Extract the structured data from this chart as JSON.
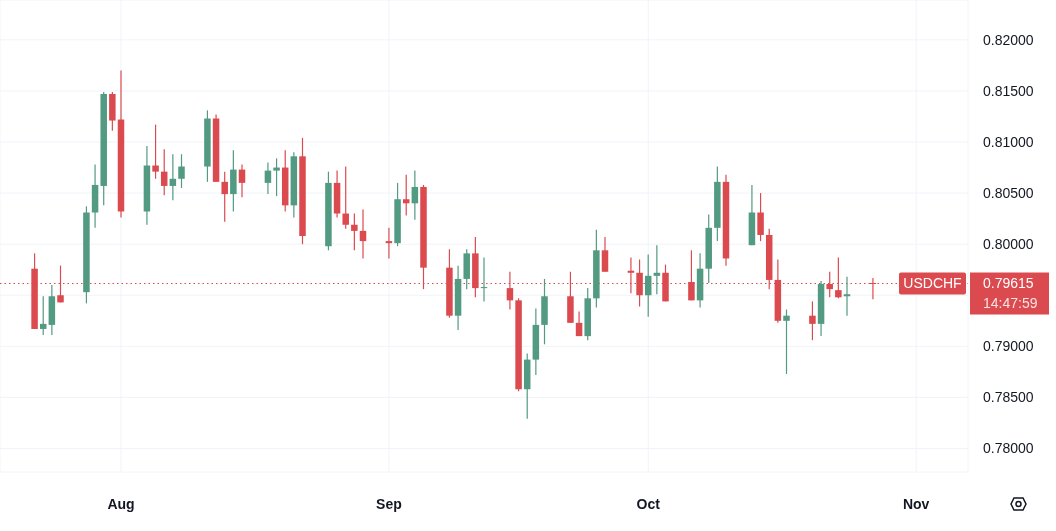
{
  "chart_data": {
    "type": "candlestick",
    "x": [
      "--07-22",
      "--07-23",
      "--07-24",
      "--07-25",
      "--07-28",
      "--07-29",
      "--07-30",
      "--07-31",
      "--08-01",
      "--08-04",
      "--08-05",
      "--08-06",
      "--08-07",
      "--08-08",
      "--08-11",
      "--08-12",
      "--08-13",
      "--08-14",
      "--08-15",
      "--08-18",
      "--08-19",
      "--08-20",
      "--08-21",
      "--08-22",
      "--08-25",
      "--08-26",
      "--08-27",
      "--08-28",
      "--08-29",
      "--09-01",
      "--09-02",
      "--09-03",
      "--09-04",
      "--09-05",
      "--09-08",
      "--09-09",
      "--09-10",
      "--09-11",
      "--09-12",
      "--09-15",
      "--09-16",
      "--09-17",
      "--09-18",
      "--09-19",
      "--09-22",
      "--09-23",
      "--09-24",
      "--09-25",
      "--09-26",
      "--09-29",
      "--09-30",
      "--10-01",
      "--10-02",
      "--10-03",
      "--10-06",
      "--10-07",
      "--10-08",
      "--10-09",
      "--10-10",
      "--10-13",
      "--10-14",
      "--10-15",
      "--10-16",
      "--10-17",
      "--10-20",
      "--10-21",
      "--10-22",
      "--10-23",
      "--10-24",
      "--10-27"
    ],
    "ohlc": [
      [
        0.7976,
        0.7991,
        0.7917,
        0.7917
      ],
      [
        0.7917,
        0.7949,
        0.7911,
        0.7922
      ],
      [
        0.7921,
        0.796,
        0.7911,
        0.7949
      ],
      [
        0.795,
        0.7979,
        0.7943,
        0.7943
      ],
      [
        0.7953,
        0.8037,
        0.7942,
        0.8031
      ],
      [
        0.8031,
        0.8078,
        0.8016,
        0.8058
      ],
      [
        0.8057,
        0.8149,
        0.8038,
        0.8147
      ],
      [
        0.8147,
        0.8149,
        0.8111,
        0.8121
      ],
      [
        0.8122,
        0.817,
        0.8026,
        0.8032
      ],
      [
        0.8032,
        0.8096,
        0.8019,
        0.8077
      ],
      [
        0.8077,
        0.8117,
        0.8064,
        0.8071
      ],
      [
        0.8071,
        0.8093,
        0.8048,
        0.8057
      ],
      [
        0.8057,
        0.8088,
        0.8043,
        0.8064
      ],
      [
        0.8064,
        0.8088,
        0.8055,
        0.8076
      ],
      [
        0.8076,
        0.8131,
        0.8061,
        0.8123
      ],
      [
        0.8123,
        0.8127,
        0.8061,
        0.8061
      ],
      [
        0.8061,
        0.8071,
        0.8022,
        0.8049
      ],
      [
        0.8049,
        0.8092,
        0.8032,
        0.8073
      ],
      [
        0.8073,
        0.8078,
        0.8046,
        0.806
      ],
      [
        0.806,
        0.808,
        0.8049,
        0.8072
      ],
      [
        0.8072,
        0.8084,
        0.8047,
        0.8075
      ],
      [
        0.8075,
        0.8092,
        0.8032,
        0.8038
      ],
      [
        0.8038,
        0.809,
        0.8026,
        0.8086
      ],
      [
        0.8086,
        0.8104,
        0.8,
        0.8008
      ],
      [
        0.7998,
        0.8071,
        0.7994,
        0.806
      ],
      [
        0.806,
        0.8072,
        0.8026,
        0.803
      ],
      [
        0.803,
        0.8076,
        0.8015,
        0.8019
      ],
      [
        0.8019,
        0.803,
        0.7994,
        0.8013
      ],
      [
        0.8013,
        0.8034,
        0.7986,
        0.8003
      ],
      [
        0.8003,
        0.8016,
        0.7986,
        0.8001
      ],
      [
        0.8001,
        0.806,
        0.7998,
        0.8044
      ],
      [
        0.8044,
        0.8068,
        0.8028,
        0.804
      ],
      [
        0.804,
        0.8072,
        0.8024,
        0.8056
      ],
      [
        0.8056,
        0.8058,
        0.7956,
        0.7977
      ],
      [
        0.7977,
        0.7995,
        0.7928,
        0.793
      ],
      [
        0.793,
        0.7979,
        0.7916,
        0.7966
      ],
      [
        0.7966,
        0.7995,
        0.7956,
        0.7991
      ],
      [
        0.7991,
        0.8007,
        0.7948,
        0.7957
      ],
      [
        0.7957,
        0.7987,
        0.7944,
        0.7958
      ],
      [
        0.7957,
        0.7973,
        0.7936,
        0.7945
      ],
      [
        0.7945,
        0.7947,
        0.7856,
        0.7858
      ],
      [
        0.7858,
        0.7893,
        0.7829,
        0.7887
      ],
      [
        0.7887,
        0.7937,
        0.7872,
        0.7921
      ],
      [
        0.7921,
        0.7966,
        0.7902,
        0.7949
      ],
      [
        0.7949,
        0.7973,
        0.7923,
        0.7923
      ],
      [
        0.7923,
        0.7934,
        0.791,
        0.791
      ],
      [
        0.791,
        0.7957,
        0.7906,
        0.7947
      ],
      [
        0.7947,
        0.8014,
        0.7938,
        0.7994
      ],
      [
        0.7994,
        0.8007,
        0.7973,
        0.7973
      ],
      [
        0.7974,
        0.7987,
        0.7952,
        0.7972
      ],
      [
        0.7972,
        0.7985,
        0.7939,
        0.795
      ],
      [
        0.795,
        0.799,
        0.7929,
        0.7969
      ],
      [
        0.7969,
        0.7999,
        0.7951,
        0.7972
      ],
      [
        0.7972,
        0.798,
        0.7944,
        0.7944
      ],
      [
        0.7963,
        0.7994,
        0.7945,
        0.7945
      ],
      [
        0.7945,
        0.7991,
        0.7938,
        0.7976
      ],
      [
        0.7976,
        0.8029,
        0.7962,
        0.8016
      ],
      [
        0.8016,
        0.8076,
        0.8003,
        0.8061
      ],
      [
        0.8061,
        0.8068,
        0.7979,
        0.7986
      ],
      [
        0.7999,
        0.8058,
        0.7999,
        0.8031
      ],
      [
        0.8031,
        0.805,
        0.8003,
        0.8009
      ],
      [
        0.8009,
        0.8015,
        0.7956,
        0.7965
      ],
      [
        0.7965,
        0.7985,
        0.7923,
        0.7925
      ],
      [
        0.7925,
        0.7936,
        0.7873,
        0.793
      ],
      [
        0.793,
        0.7944,
        0.7906,
        0.7922
      ],
      [
        0.7922,
        0.7964,
        0.791,
        0.7961
      ],
      [
        0.7961,
        0.7973,
        0.7948,
        0.7956
      ],
      [
        0.7955,
        0.7987,
        0.7947,
        0.7948
      ],
      [
        0.7949,
        0.7968,
        0.793,
        0.7951
      ],
      [
        0.7962,
        0.7967,
        0.7946,
        0.79615
      ]
    ],
    "colors": [
      "#db4a4f",
      "#529a81",
      "#529a81",
      "#db4a4f",
      "#529a81",
      "#529a81",
      "#529a81",
      "#db4a4f",
      "#db4a4f",
      "#529a81",
      "#db4a4f",
      "#db4a4f",
      "#529a81",
      "#529a81",
      "#529a81",
      "#db4a4f",
      "#db4a4f",
      "#529a81",
      "#db4a4f",
      "#529a81",
      "#529a81",
      "#db4a4f",
      "#529a81",
      "#db4a4f",
      "#529a81",
      "#db4a4f",
      "#db4a4f",
      "#db4a4f",
      "#db4a4f",
      "#db4a4f",
      "#529a81",
      "#db4a4f",
      "#529a81",
      "#db4a4f",
      "#db4a4f",
      "#529a81",
      "#529a81",
      "#db4a4f",
      "#529a81",
      "#db4a4f",
      "#db4a4f",
      "#529a81",
      "#529a81",
      "#529a81",
      "#db4a4f",
      "#db4a4f",
      "#529a81",
      "#529a81",
      "#db4a4f",
      "#db4a4f",
      "#db4a4f",
      "#529a81",
      "#529a81",
      "#db4a4f",
      "#db4a4f",
      "#529a81",
      "#529a81",
      "#529a81",
      "#db4a4f",
      "#529a81",
      "#db4a4f",
      "#db4a4f",
      "#db4a4f",
      "#529a81",
      "#db4a4f",
      "#529a81",
      "#db4a4f",
      "#db4a4f",
      "#529a81",
      "#db4a4f"
    ],
    "xlim": [
      "--07-18",
      "--11-07"
    ],
    "xticks": [
      {
        "value": "--08-01",
        "label": "Aug"
      },
      {
        "value": "--09-01",
        "label": "Sep"
      },
      {
        "value": "--10-01",
        "label": "Oct"
      },
      {
        "value": "--11-01",
        "label": "Nov"
      }
    ],
    "ylim": [
      0.7777,
      0.8239
    ],
    "yticks": [
      {
        "value": 0.78,
        "label": "0.78000"
      },
      {
        "value": 0.785,
        "label": "0.78500"
      },
      {
        "value": 0.79,
        "label": "0.79000"
      },
      {
        "value": 0.795,
        "label": null
      },
      {
        "value": 0.8,
        "label": "0.80000"
      },
      {
        "value": 0.805,
        "label": "0.80500"
      },
      {
        "value": 0.81,
        "label": "0.81000"
      },
      {
        "value": 0.815,
        "label": "0.81500"
      },
      {
        "value": 0.82,
        "label": "0.82000"
      }
    ],
    "grid": true,
    "ref_lines": [
      {
        "axis": "y",
        "value": 0.79615,
        "label": "0.79615",
        "color": "#db4a4f",
        "line_style": "dotted"
      }
    ],
    "annotations": [
      {
        "text": "USDCHF",
        "y": 0.79615
      },
      "14:47:59"
    ]
  }
}
